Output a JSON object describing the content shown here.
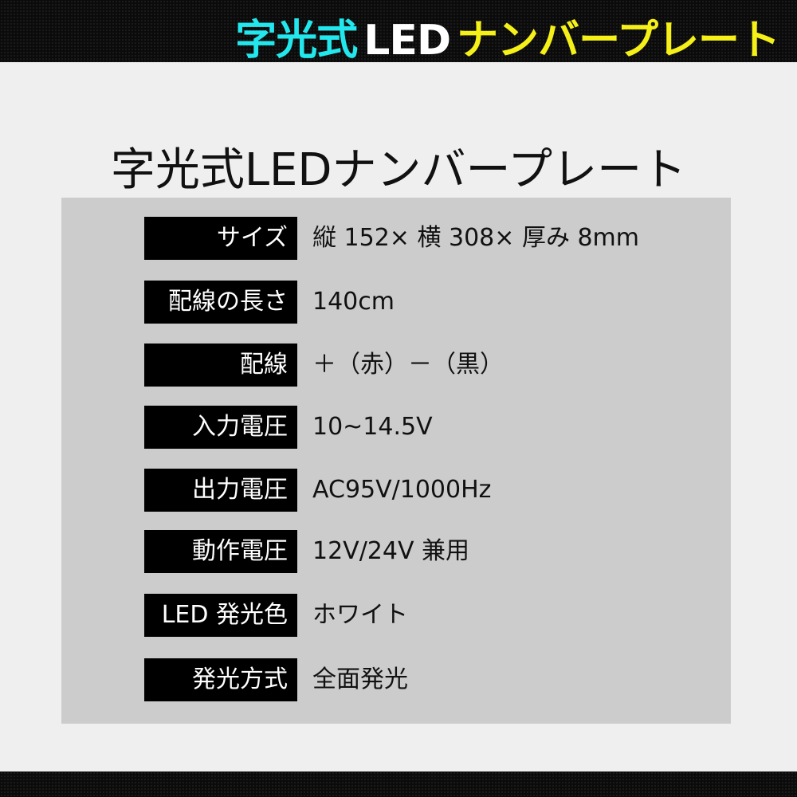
{
  "banner": {
    "part1": "字光式",
    "part2": "LED",
    "part3": "ナンバープレート",
    "colors": {
      "part1": "#22e8ee",
      "part2": "#ffffff",
      "part3": "#f5f017"
    }
  },
  "title": "字光式LEDナンバープレート",
  "specs": [
    {
      "label": "サイズ",
      "value": "縦 152× 横 308× 厚み 8mm"
    },
    {
      "label": "配線の長さ",
      "value": "140cm"
    },
    {
      "label": "配線",
      "value": "＋（赤）－（黒）"
    },
    {
      "label": "入力電圧",
      "value": "10~14.5V"
    },
    {
      "label": "出力電圧",
      "value": "AC95V/1000Hz"
    },
    {
      "label": "動作電圧",
      "value": "12V/24V 兼用"
    },
    {
      "label": "LED 発光色",
      "value": "ホワイト"
    },
    {
      "label": "発光方式",
      "value": "全面発光"
    }
  ]
}
